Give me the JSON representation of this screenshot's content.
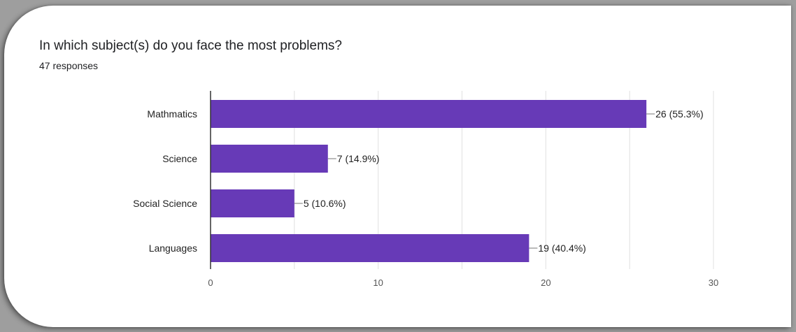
{
  "question": {
    "title": "In which subject(s) do you face the most problems?",
    "responses": "47 responses"
  },
  "chart_data": {
    "type": "bar",
    "orientation": "horizontal",
    "categories": [
      "Mathmatics",
      "Science",
      "Social Science",
      "Languages"
    ],
    "values": [
      26,
      7,
      5,
      19
    ],
    "data_labels": [
      "26 (55.3%)",
      "7 (14.9%)",
      "5 (10.6%)",
      "19 (40.4%)"
    ],
    "xlim": [
      0,
      30
    ],
    "xticks": [
      0,
      10,
      20,
      30
    ],
    "title": "In which subject(s) do you face the most problems?",
    "subtitle": "47 responses",
    "grid": true,
    "bar_color": "#673ab7",
    "legend": "none"
  }
}
